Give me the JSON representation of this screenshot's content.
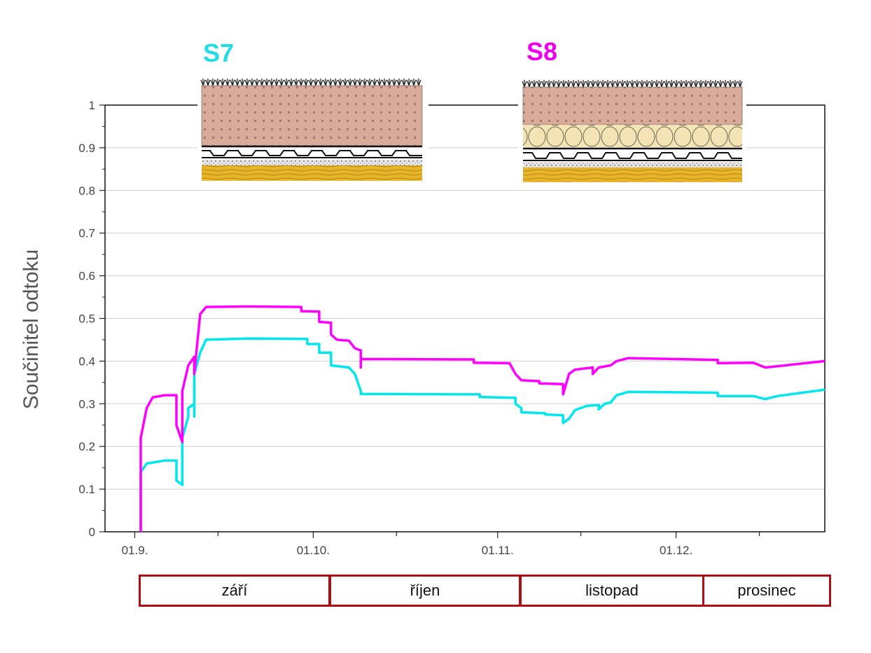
{
  "chart_data": {
    "type": "line",
    "title": "",
    "xlabel": "",
    "ylabel": "Součinitel odtoku",
    "ylim": [
      0,
      1
    ],
    "xlim": [
      "2016-08-27",
      "2016-12-26"
    ],
    "y_ticks": [
      "0",
      "0.1",
      "0.2",
      "0.3",
      "0.4",
      "0.5",
      "0.6",
      "0.7",
      "0.8",
      "0.9",
      "1"
    ],
    "x_ticks": [
      {
        "date": "2016-09-01",
        "label": "01.9."
      },
      {
        "date": "2016-10-01",
        "label": "01.10."
      },
      {
        "date": "2016-11-01",
        "label": "01.11."
      },
      {
        "date": "2016-12-01",
        "label": "01.12."
      }
    ],
    "grid": true,
    "series": [
      {
        "name": "S7",
        "color": "#00e8ee",
        "points": [
          [
            "2016-09-02",
            0.0
          ],
          [
            "2016-09-02",
            0.1
          ],
          [
            "2016-09-02",
            0.14
          ],
          [
            "2016-09-03",
            0.16
          ],
          [
            "2016-09-06",
            0.167
          ],
          [
            "2016-09-08",
            0.167
          ],
          [
            "2016-09-08",
            0.12
          ],
          [
            "2016-09-09",
            0.11
          ],
          [
            "2016-09-09",
            0.22
          ],
          [
            "2016-09-10",
            0.27
          ],
          [
            "2016-09-10",
            0.29
          ],
          [
            "2016-09-11",
            0.3
          ],
          [
            "2016-09-11",
            0.27
          ],
          [
            "2016-09-11",
            0.37
          ],
          [
            "2016-09-12",
            0.42
          ],
          [
            "2016-09-13",
            0.45
          ],
          [
            "2016-09-20",
            0.453
          ],
          [
            "2016-09-30",
            0.452
          ],
          [
            "2016-09-30",
            0.44
          ],
          [
            "2016-10-02",
            0.44
          ],
          [
            "2016-10-02",
            0.42
          ],
          [
            "2016-10-04",
            0.42
          ],
          [
            "2016-10-04",
            0.39
          ],
          [
            "2016-10-07",
            0.385
          ],
          [
            "2016-10-08",
            0.37
          ],
          [
            "2016-10-09",
            0.33
          ],
          [
            "2016-10-09",
            0.323
          ],
          [
            "2016-10-29",
            0.322
          ],
          [
            "2016-10-29",
            0.316
          ],
          [
            "2016-11-04",
            0.314
          ],
          [
            "2016-11-04",
            0.3
          ],
          [
            "2016-11-05",
            0.29
          ],
          [
            "2016-11-05",
            0.28
          ],
          [
            "2016-11-09",
            0.278
          ],
          [
            "2016-11-09",
            0.275
          ],
          [
            "2016-11-12",
            0.273
          ],
          [
            "2016-11-12",
            0.255
          ],
          [
            "2016-11-13",
            0.265
          ],
          [
            "2016-11-14",
            0.285
          ],
          [
            "2016-11-16",
            0.295
          ],
          [
            "2016-11-18",
            0.297
          ],
          [
            "2016-11-18",
            0.287
          ],
          [
            "2016-11-19",
            0.3
          ],
          [
            "2016-11-20",
            0.303
          ],
          [
            "2016-11-21",
            0.32
          ],
          [
            "2016-11-23",
            0.328
          ],
          [
            "2016-12-08",
            0.326
          ],
          [
            "2016-12-08",
            0.318
          ],
          [
            "2016-12-14",
            0.318
          ],
          [
            "2016-12-16",
            0.311
          ],
          [
            "2016-12-18",
            0.318
          ],
          [
            "2016-12-26",
            0.333
          ]
        ]
      },
      {
        "name": "S8",
        "color": "#ff00ff",
        "points": [
          [
            "2016-09-02",
            0.0
          ],
          [
            "2016-09-02",
            0.22
          ],
          [
            "2016-09-03",
            0.29
          ],
          [
            "2016-09-04",
            0.315
          ],
          [
            "2016-09-06",
            0.32
          ],
          [
            "2016-09-08",
            0.32
          ],
          [
            "2016-09-08",
            0.25
          ],
          [
            "2016-09-09",
            0.21
          ],
          [
            "2016-09-09",
            0.33
          ],
          [
            "2016-09-10",
            0.39
          ],
          [
            "2016-09-11",
            0.41
          ],
          [
            "2016-09-11",
            0.37
          ],
          [
            "2016-09-12",
            0.51
          ],
          [
            "2016-09-13",
            0.527
          ],
          [
            "2016-09-20",
            0.528
          ],
          [
            "2016-09-29",
            0.527
          ],
          [
            "2016-09-29",
            0.517
          ],
          [
            "2016-10-02",
            0.516
          ],
          [
            "2016-10-02",
            0.492
          ],
          [
            "2016-10-04",
            0.49
          ],
          [
            "2016-10-04",
            0.462
          ],
          [
            "2016-10-05",
            0.45
          ],
          [
            "2016-10-07",
            0.448
          ],
          [
            "2016-10-08",
            0.43
          ],
          [
            "2016-10-09",
            0.425
          ],
          [
            "2016-10-09",
            0.385
          ],
          [
            "2016-10-09",
            0.405
          ],
          [
            "2016-10-28",
            0.404
          ],
          [
            "2016-10-28",
            0.396
          ],
          [
            "2016-11-03",
            0.395
          ],
          [
            "2016-11-04",
            0.37
          ],
          [
            "2016-11-05",
            0.355
          ],
          [
            "2016-11-08",
            0.353
          ],
          [
            "2016-11-08",
            0.348
          ],
          [
            "2016-11-12",
            0.346
          ],
          [
            "2016-11-12",
            0.322
          ],
          [
            "2016-11-13",
            0.37
          ],
          [
            "2016-11-14",
            0.38
          ],
          [
            "2016-11-17",
            0.385
          ],
          [
            "2016-11-17",
            0.37
          ],
          [
            "2016-11-18",
            0.385
          ],
          [
            "2016-11-20",
            0.39
          ],
          [
            "2016-11-21",
            0.4
          ],
          [
            "2016-11-23",
            0.407
          ],
          [
            "2016-12-08",
            0.403
          ],
          [
            "2016-12-08",
            0.395
          ],
          [
            "2016-12-14",
            0.396
          ],
          [
            "2016-12-16",
            0.385
          ],
          [
            "2016-12-18",
            0.388
          ],
          [
            "2016-12-26",
            0.4
          ]
        ]
      }
    ]
  },
  "months": [
    {
      "label": "září"
    },
    {
      "label": "říjen"
    },
    {
      "label": "listopad"
    },
    {
      "label": "prosinec"
    }
  ],
  "insets": [
    {
      "title": "S7",
      "color": "#22dde6"
    },
    {
      "title": "S8",
      "color": "#ee00ee"
    }
  ]
}
